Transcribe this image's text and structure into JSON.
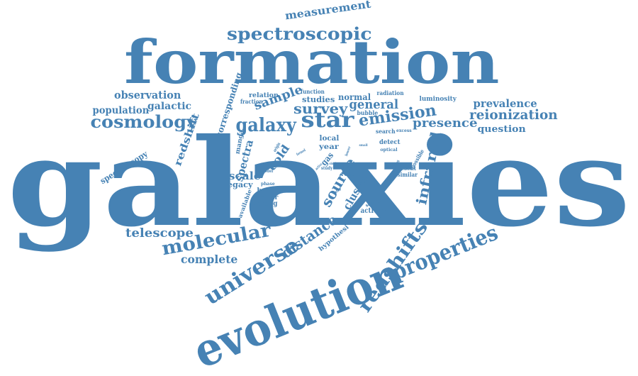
{
  "color": "#4682b4",
  "words": [
    {
      "text": "galaxies"
    },
    {
      "text": "formation"
    },
    {
      "text": "evolution"
    },
    {
      "text": "spectroscopic"
    },
    {
      "text": "measurement"
    },
    {
      "text": "properties"
    },
    {
      "text": "universe"
    },
    {
      "text": "redshifts"
    },
    {
      "text": "molecular"
    },
    {
      "text": "cosmology"
    },
    {
      "text": "telescope"
    },
    {
      "text": "star"
    },
    {
      "text": "galaxy"
    },
    {
      "text": "emission"
    },
    {
      "text": "reionization"
    },
    {
      "text": "presence"
    },
    {
      "text": "prevalence"
    },
    {
      "text": "question"
    },
    {
      "text": "survey"
    },
    {
      "text": "general"
    },
    {
      "text": "sample"
    },
    {
      "text": "observation"
    },
    {
      "text": "population"
    },
    {
      "text": "galactic"
    },
    {
      "text": "corresponding"
    },
    {
      "text": "relation"
    },
    {
      "text": "studies"
    },
    {
      "text": "normal"
    },
    {
      "text": "luminosity"
    },
    {
      "text": "function"
    },
    {
      "text": "radiation"
    },
    {
      "text": "fraction"
    },
    {
      "text": "bubble"
    },
    {
      "text": "search"
    },
    {
      "text": "excess"
    },
    {
      "text": "redshift"
    },
    {
      "text": "spectroscopy"
    },
    {
      "text": "complete"
    },
    {
      "text": "distance"
    },
    {
      "text": "hypothesi"
    },
    {
      "text": "infrared"
    },
    {
      "text": "source"
    },
    {
      "text": "cluster"
    },
    {
      "text": "activity"
    },
    {
      "text": "scale"
    },
    {
      "text": "legacy"
    },
    {
      "text": "spectra"
    },
    {
      "text": "manga"
    },
    {
      "text": "cold"
    },
    {
      "text": "phase"
    },
    {
      "text": "bang"
    },
    {
      "text": "stellar"
    },
    {
      "text": "strong"
    },
    {
      "text": "available"
    },
    {
      "text": "local"
    },
    {
      "text": "year"
    },
    {
      "text": "gas"
    },
    {
      "text": "detect"
    },
    {
      "text": "optical"
    },
    {
      "text": "possible"
    },
    {
      "text": "present"
    },
    {
      "text": "similar"
    },
    {
      "text": "result"
    },
    {
      "text": "study"
    },
    {
      "text": "thesis"
    },
    {
      "text": "scaling"
    },
    {
      "text": "model"
    },
    {
      "text": "origin"
    },
    {
      "text": "single"
    },
    {
      "text": "active"
    },
    {
      "text": "lower"
    },
    {
      "text": "ionizing"
    },
    {
      "text": "formed"
    },
    {
      "text": "small"
    },
    {
      "text": "ratio"
    }
  ]
}
